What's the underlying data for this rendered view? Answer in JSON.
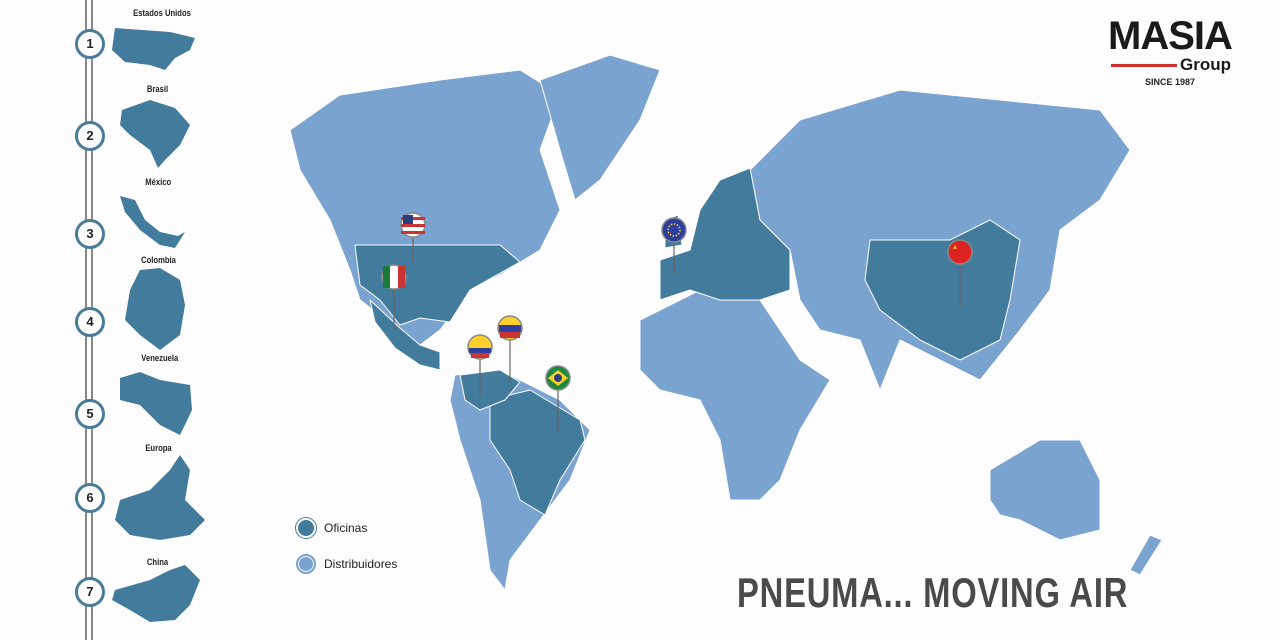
{
  "brand": {
    "name": "MASIA",
    "sub": "Group",
    "since": "SINCE 1987",
    "accent": "#d0312d"
  },
  "colors": {
    "offices": "#427b9c",
    "distributors": "#7aa3cf"
  },
  "countries": [
    {
      "num": "1",
      "name": "Estados Unidos",
      "flag": "usa"
    },
    {
      "num": "2",
      "name": "Brasil",
      "flag": "brazil"
    },
    {
      "num": "3",
      "name": "México",
      "flag": "mexico"
    },
    {
      "num": "4",
      "name": "Colombia",
      "flag": "colombia"
    },
    {
      "num": "5",
      "name": "Venezuela",
      "flag": "venezuela"
    },
    {
      "num": "6",
      "name": "Europa",
      "flag": "eu"
    },
    {
      "num": "7",
      "name": "China",
      "flag": "china"
    }
  ],
  "legend": {
    "offices": "Oficinas",
    "distributors": "Distribuidores"
  },
  "slogan": "PNEUMA... MOVING AIR"
}
